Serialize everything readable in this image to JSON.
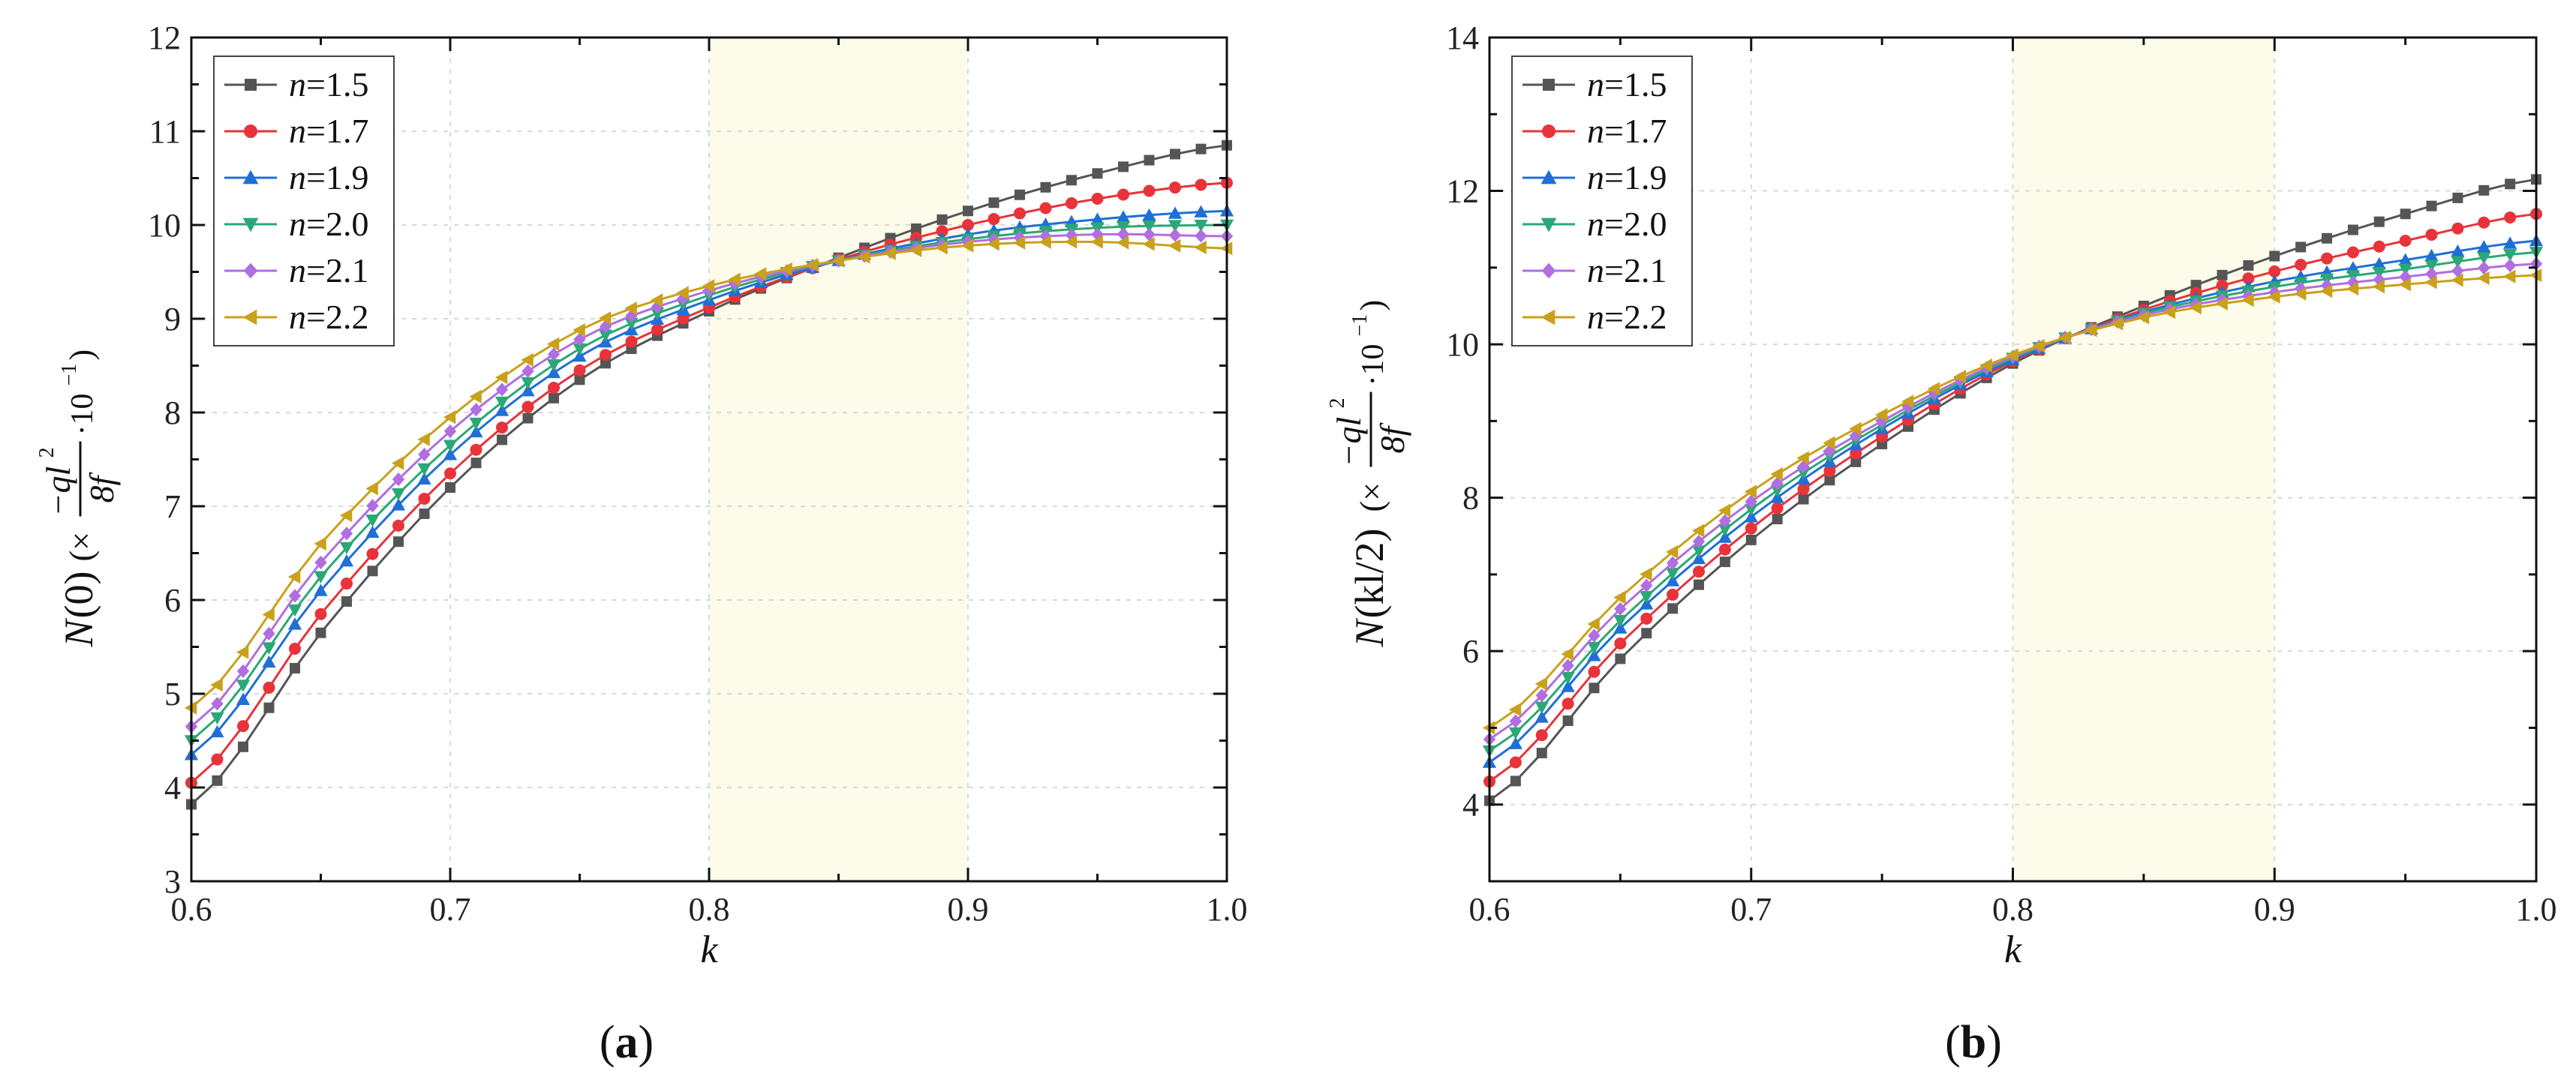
{
  "chart_data": [
    {
      "type": "line",
      "panel_label": "(a)",
      "panel_letter": "a",
      "xlabel": "k",
      "ylabel": "N(0)(× −ql²/8f · 10⁻¹)",
      "ylabel_parts": {
        "func": "N",
        "arg": "(0)",
        "mult": "(×",
        "numer": "−ql",
        "exp": "2",
        "denom": "8f",
        "scale": "·10",
        "scale_exp": "−1",
        "close": ")"
      },
      "xlim": [
        0.6,
        1.0
      ],
      "ylim": [
        3,
        12
      ],
      "xticks": [
        "0.6",
        "0.7",
        "0.8",
        "0.9",
        "1.0"
      ],
      "yticks": [
        "3",
        "4",
        "5",
        "6",
        "7",
        "8",
        "9",
        "10",
        "11",
        "12"
      ],
      "shaded_region": [
        0.8,
        0.9
      ],
      "legend_position": "top-left",
      "x_start": 0.6,
      "x_step": 0.01,
      "n_points": 41,
      "series": [
        {
          "name": "n=1.5",
          "label_var": "n",
          "label_val": "=1.5",
          "color": "#555555",
          "marker": "square",
          "anchors": [
            [
              0.6,
              3.82
            ],
            [
              0.65,
              5.65
            ],
            [
              0.7,
              7.2
            ],
            [
              0.75,
              8.35
            ],
            [
              0.8,
              9.08
            ],
            [
              0.85,
              9.65
            ],
            [
              0.9,
              10.15
            ],
            [
              0.95,
              10.55
            ],
            [
              1.0,
              10.85
            ]
          ]
        },
        {
          "name": "n=1.7",
          "label_var": "n",
          "label_val": "=1.7",
          "color": "#e8333a",
          "marker": "circle",
          "anchors": [
            [
              0.6,
              4.05
            ],
            [
              0.65,
              5.85
            ],
            [
              0.7,
              7.35
            ],
            [
              0.75,
              8.45
            ],
            [
              0.8,
              9.12
            ],
            [
              0.85,
              9.63
            ],
            [
              0.9,
              10.0
            ],
            [
              0.95,
              10.28
            ],
            [
              1.0,
              10.45
            ]
          ]
        },
        {
          "name": "n=1.9",
          "label_var": "n",
          "label_val": "=1.9",
          "color": "#1f6fd6",
          "marker": "triangle-up",
          "anchors": [
            [
              0.6,
              4.35
            ],
            [
              0.65,
              6.1
            ],
            [
              0.7,
              7.55
            ],
            [
              0.75,
              8.6
            ],
            [
              0.8,
              9.2
            ],
            [
              0.85,
              9.62
            ],
            [
              0.9,
              9.9
            ],
            [
              0.95,
              10.06
            ],
            [
              1.0,
              10.15
            ]
          ]
        },
        {
          "name": "n=2.0",
          "label_var": "n",
          "label_val": "=2.0",
          "color": "#2aa876",
          "marker": "triangle-down",
          "anchors": [
            [
              0.6,
              4.5
            ],
            [
              0.65,
              6.25
            ],
            [
              0.7,
              7.65
            ],
            [
              0.75,
              8.68
            ],
            [
              0.8,
              9.25
            ],
            [
              0.85,
              9.62
            ],
            [
              0.9,
              9.85
            ],
            [
              0.95,
              9.97
            ],
            [
              1.0,
              10.0
            ]
          ]
        },
        {
          "name": "n=2.1",
          "label_var": "n",
          "label_val": "=2.1",
          "color": "#b06ee0",
          "marker": "diamond",
          "anchors": [
            [
              0.6,
              4.65
            ],
            [
              0.65,
              6.4
            ],
            [
              0.7,
              7.8
            ],
            [
              0.75,
              8.78
            ],
            [
              0.8,
              9.3
            ],
            [
              0.85,
              9.62
            ],
            [
              0.9,
              9.82
            ],
            [
              0.95,
              9.9
            ],
            [
              1.0,
              9.88
            ]
          ]
        },
        {
          "name": "n=2.2",
          "label_var": "n",
          "label_val": "=2.2",
          "color": "#c9a11a",
          "marker": "triangle-left",
          "anchors": [
            [
              0.6,
              4.85
            ],
            [
              0.65,
              6.6
            ],
            [
              0.7,
              7.95
            ],
            [
              0.75,
              8.88
            ],
            [
              0.8,
              9.35
            ],
            [
              0.85,
              9.62
            ],
            [
              0.9,
              9.78
            ],
            [
              0.95,
              9.82
            ],
            [
              1.0,
              9.75
            ]
          ]
        }
      ]
    },
    {
      "type": "line",
      "panel_label": "(b)",
      "panel_letter": "b",
      "xlabel": "k",
      "ylabel": "N(kl/2)(× −ql²/8f · 10⁻¹)",
      "ylabel_parts": {
        "func": "N",
        "arg": "(kl/2)",
        "mult": "(×",
        "numer": "−ql",
        "exp": "2",
        "denom": "8f",
        "scale": "·10",
        "scale_exp": "−1",
        "close": ")"
      },
      "xlim": [
        0.6,
        1.0
      ],
      "ylim": [
        3,
        14
      ],
      "xticks": [
        "0.6",
        "0.7",
        "0.8",
        "0.9",
        "1.0"
      ],
      "yticks": [
        "4",
        "6",
        "8",
        "10",
        "12",
        "14"
      ],
      "shaded_region": [
        0.8,
        0.9
      ],
      "legend_position": "top-left",
      "x_start": 0.6,
      "x_step": 0.01,
      "n_points": 41,
      "series": [
        {
          "name": "n=1.5",
          "label_var": "n",
          "label_val": "=1.5",
          "color": "#555555",
          "marker": "square",
          "anchors": [
            [
              0.6,
              4.05
            ],
            [
              0.65,
              5.9
            ],
            [
              0.7,
              7.45
            ],
            [
              0.75,
              8.7
            ],
            [
              0.8,
              9.75
            ],
            [
              0.85,
              10.5
            ],
            [
              0.9,
              11.15
            ],
            [
              0.95,
              11.7
            ],
            [
              1.0,
              12.15
            ]
          ]
        },
        {
          "name": "n=1.7",
          "label_var": "n",
          "label_val": "=1.7",
          "color": "#e8333a",
          "marker": "circle",
          "anchors": [
            [
              0.6,
              4.3
            ],
            [
              0.65,
              6.1
            ],
            [
              0.7,
              7.6
            ],
            [
              0.75,
              8.8
            ],
            [
              0.8,
              9.78
            ],
            [
              0.85,
              10.45
            ],
            [
              0.9,
              10.95
            ],
            [
              0.95,
              11.35
            ],
            [
              1.0,
              11.7
            ]
          ]
        },
        {
          "name": "n=1.9",
          "label_var": "n",
          "label_val": "=1.9",
          "color": "#1f6fd6",
          "marker": "triangle-up",
          "anchors": [
            [
              0.6,
              4.55
            ],
            [
              0.65,
              6.3
            ],
            [
              0.7,
              7.75
            ],
            [
              0.75,
              8.9
            ],
            [
              0.8,
              9.8
            ],
            [
              0.85,
              10.42
            ],
            [
              0.9,
              10.82
            ],
            [
              0.95,
              11.1
            ],
            [
              1.0,
              11.35
            ]
          ]
        },
        {
          "name": "n=2.0",
          "label_var": "n",
          "label_val": "=2.0",
          "color": "#2aa876",
          "marker": "triangle-down",
          "anchors": [
            [
              0.6,
              4.7
            ],
            [
              0.65,
              6.4
            ],
            [
              0.7,
              7.85
            ],
            [
              0.75,
              8.95
            ],
            [
              0.8,
              9.82
            ],
            [
              0.85,
              10.4
            ],
            [
              0.9,
              10.75
            ],
            [
              0.95,
              10.98
            ],
            [
              1.0,
              11.2
            ]
          ]
        },
        {
          "name": "n=2.1",
          "label_var": "n",
          "label_val": "=2.1",
          "color": "#b06ee0",
          "marker": "diamond",
          "anchors": [
            [
              0.6,
              4.85
            ],
            [
              0.65,
              6.55
            ],
            [
              0.7,
              7.95
            ],
            [
              0.75,
              9.0
            ],
            [
              0.8,
              9.84
            ],
            [
              0.85,
              10.38
            ],
            [
              0.9,
              10.68
            ],
            [
              0.95,
              10.88
            ],
            [
              1.0,
              11.05
            ]
          ]
        },
        {
          "name": "n=2.2",
          "label_var": "n",
          "label_val": "=2.2",
          "color": "#c9a11a",
          "marker": "triangle-left",
          "anchors": [
            [
              0.6,
              5.0
            ],
            [
              0.65,
              6.7
            ],
            [
              0.7,
              8.08
            ],
            [
              0.75,
              9.08
            ],
            [
              0.8,
              9.86
            ],
            [
              0.85,
              10.35
            ],
            [
              0.9,
              10.62
            ],
            [
              0.95,
              10.78
            ],
            [
              1.0,
              10.9
            ]
          ]
        }
      ]
    }
  ]
}
